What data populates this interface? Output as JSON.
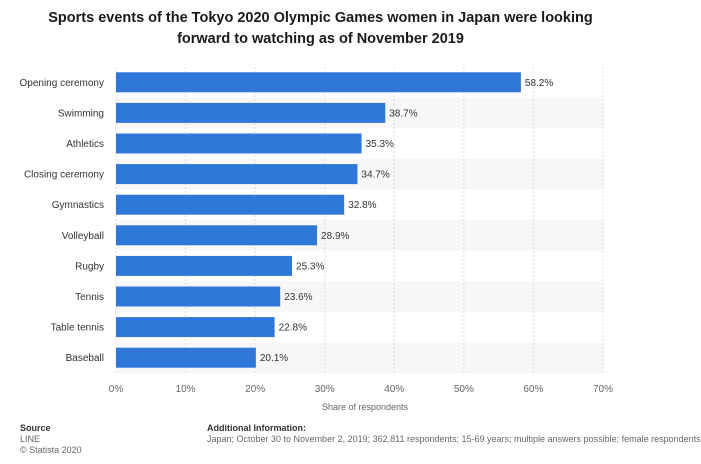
{
  "title": "Sports events of the Tokyo 2020 Olympic Games women in Japan were looking forward to watching as of November 2019",
  "source": {
    "heading": "Source",
    "lines": [
      "LINE",
      "© Statista 2020"
    ]
  },
  "additional_info": {
    "heading": "Additional Information:",
    "text": "Japan; October 30 to November 2, 2019; 362,811 respondents; 15-69 years; multiple answers possible; female respondents"
  },
  "colors": {
    "bar": "#2f77d8",
    "band_light": "#f7f7f7",
    "grid": "#d9d9d9"
  },
  "chart_data": {
    "type": "bar",
    "orientation": "horizontal",
    "categories": [
      "Opening ceremony",
      "Swimming",
      "Athletics",
      "Closing ceremony",
      "Gymnastics",
      "Volleyball",
      "Rugby",
      "Tennis",
      "Table tennis",
      "Baseball"
    ],
    "values": [
      58.2,
      38.7,
      35.3,
      34.7,
      32.8,
      28.9,
      25.3,
      23.6,
      22.8,
      20.1
    ],
    "data_labels": [
      "58.2%",
      "38.7%",
      "35.3%",
      "34.7%",
      "32.8%",
      "28.9%",
      "25.3%",
      "23.6%",
      "22.8%",
      "20.1%"
    ],
    "xlim": [
      0,
      70
    ],
    "x_ticks": [
      0,
      10,
      20,
      30,
      40,
      50,
      60,
      70
    ],
    "x_tick_labels": [
      "0%",
      "10%",
      "20%",
      "30%",
      "40%",
      "50%",
      "60%",
      "70%"
    ],
    "xlabel": "Share of respondents",
    "ylabel": "",
    "grid": true
  }
}
